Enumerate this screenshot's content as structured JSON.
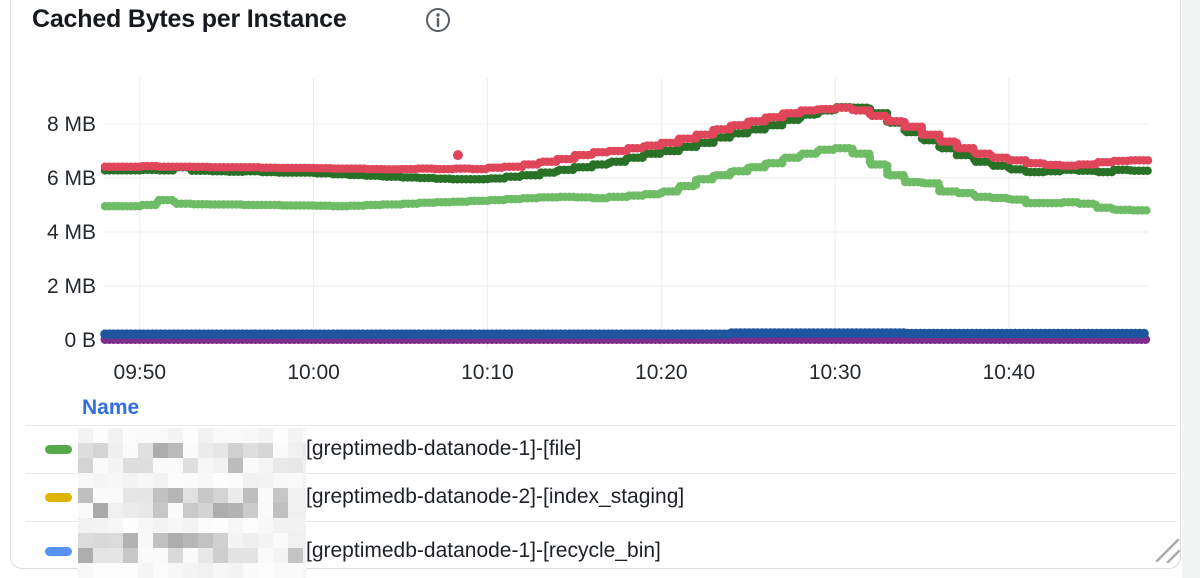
{
  "panel": {
    "title": "Cached Bytes per Instance"
  },
  "chart_data": {
    "type": "scatter",
    "title": "Cached Bytes per Instance",
    "unit": "bytes",
    "grid": true,
    "legend_position": "bottom-table",
    "minutes_total": 60,
    "ylim_mb": [
      0,
      9.7
    ],
    "y_ticks": [
      {
        "label": "0 B",
        "value": 0
      },
      {
        "label": "2 MB",
        "value": 2
      },
      {
        "label": "4 MB",
        "value": 4
      },
      {
        "label": "6 MB",
        "value": 6
      },
      {
        "label": "8 MB",
        "value": 8
      }
    ],
    "x_ticks": [
      {
        "label": "09:50",
        "minute": 2
      },
      {
        "label": "10:00",
        "minute": 12
      },
      {
        "label": "10:10",
        "minute": 22
      },
      {
        "label": "10:20",
        "minute": 32
      },
      {
        "label": "10:30",
        "minute": 42
      },
      {
        "label": "10:40",
        "minute": 52
      }
    ],
    "series": [
      {
        "name": "light-green",
        "color": "#6FBC67",
        "values_mb": [
          4.95,
          4.95,
          5.0,
          5.18,
          5.05,
          5.03,
          5.02,
          5.02,
          5.0,
          5.0,
          4.98,
          4.98,
          4.97,
          4.95,
          4.97,
          5.0,
          5.02,
          5.05,
          5.08,
          5.1,
          5.12,
          5.15,
          5.18,
          5.22,
          5.25,
          5.28,
          5.3,
          5.28,
          5.25,
          5.3,
          5.35,
          5.4,
          5.5,
          5.7,
          5.95,
          6.1,
          6.25,
          6.4,
          6.55,
          6.75,
          6.9,
          7.05,
          7.1,
          6.9,
          6.5,
          6.1,
          5.85,
          5.8,
          5.5,
          5.44,
          5.3,
          5.26,
          5.2,
          5.07,
          5.07,
          5.1,
          5.05,
          4.9,
          4.82,
          4.8
        ]
      },
      {
        "name": "dark-green",
        "color": "#2A7128",
        "values_mb": [
          6.28,
          6.28,
          6.3,
          6.28,
          6.4,
          6.27,
          6.25,
          6.23,
          6.25,
          6.22,
          6.2,
          6.2,
          6.17,
          6.14,
          6.11,
          6.08,
          6.05,
          6.02,
          6.0,
          5.97,
          5.95,
          5.95,
          5.98,
          6.05,
          6.1,
          6.2,
          6.3,
          6.4,
          6.5,
          6.6,
          6.75,
          6.9,
          7.0,
          7.15,
          7.3,
          7.5,
          7.65,
          7.8,
          7.95,
          8.15,
          8.35,
          8.5,
          8.62,
          8.6,
          8.4,
          8.05,
          7.7,
          7.4,
          7.1,
          6.85,
          6.6,
          6.45,
          6.32,
          6.22,
          6.25,
          6.3,
          6.27,
          6.22,
          6.3,
          6.27
        ]
      },
      {
        "name": "red",
        "color": "#E0465A",
        "values_mb": [
          6.42,
          6.42,
          6.44,
          6.42,
          6.42,
          6.41,
          6.4,
          6.4,
          6.4,
          6.38,
          6.37,
          6.37,
          6.36,
          6.35,
          6.35,
          6.33,
          6.32,
          6.33,
          6.35,
          6.33,
          6.35,
          6.33,
          6.38,
          6.42,
          6.5,
          6.6,
          6.7,
          6.85,
          6.95,
          7.0,
          7.1,
          7.2,
          7.3,
          7.45,
          7.6,
          7.8,
          7.95,
          8.1,
          8.25,
          8.4,
          8.5,
          8.55,
          8.6,
          8.5,
          8.3,
          8.1,
          7.9,
          7.6,
          7.35,
          7.1,
          6.9,
          6.75,
          6.65,
          6.55,
          6.48,
          6.45,
          6.5,
          6.58,
          6.63,
          6.65
        ]
      },
      {
        "name": "purple",
        "color": "#7D2E8D",
        "values_mb": [
          0.02,
          0.02,
          0.02,
          0.02,
          0.02,
          0.02,
          0.02,
          0.02,
          0.02,
          0.02,
          0.02,
          0.02,
          0.02,
          0.02,
          0.02,
          0.02,
          0.02,
          0.02,
          0.02,
          0.02,
          0.02,
          0.02,
          0.02,
          0.02,
          0.02,
          0.02,
          0.02,
          0.02,
          0.02,
          0.02,
          0.02,
          0.02,
          0.02,
          0.02,
          0.02,
          0.02,
          0.02,
          0.02,
          0.02,
          0.02,
          0.02,
          0.02,
          0.02,
          0.02,
          0.02,
          0.02,
          0.02,
          0.02,
          0.02,
          0.02,
          0.02,
          0.02,
          0.02,
          0.02,
          0.02,
          0.02,
          0.02,
          0.02,
          0.02,
          0.02
        ]
      },
      {
        "name": "dark-blue",
        "color": "#1D569E",
        "values_mb": [
          0.22,
          0.22,
          0.22,
          0.22,
          0.22,
          0.22,
          0.22,
          0.22,
          0.22,
          0.22,
          0.22,
          0.22,
          0.22,
          0.22,
          0.22,
          0.22,
          0.22,
          0.22,
          0.22,
          0.22,
          0.22,
          0.22,
          0.22,
          0.22,
          0.22,
          0.22,
          0.22,
          0.22,
          0.22,
          0.22,
          0.22,
          0.22,
          0.22,
          0.22,
          0.22,
          0.22,
          0.26,
          0.26,
          0.26,
          0.26,
          0.26,
          0.26,
          0.26,
          0.26,
          0.26,
          0.26,
          0.24,
          0.24,
          0.24,
          0.24,
          0.24,
          0.24,
          0.24,
          0.24,
          0.24,
          0.24,
          0.24,
          0.24,
          0.24,
          0.24
        ]
      }
    ],
    "outlier": {
      "series_name": "red",
      "minute": 20.3,
      "value_mb": 6.85
    }
  },
  "legend": {
    "header": "Name",
    "rows": [
      {
        "marker_color": "#56A84B",
        "label": "[greptimedb-datanode-1]-[file]",
        "name_prefix_censored": true
      },
      {
        "marker_color": "#E0B404",
        "label": "[greptimedb-datanode-2]-[index_staging]",
        "name_prefix_censored": true
      },
      {
        "marker_color": "#5794F2",
        "label": "[greptimedb-datanode-1]-[recycle_bin]",
        "name_prefix_censored": true
      }
    ]
  }
}
